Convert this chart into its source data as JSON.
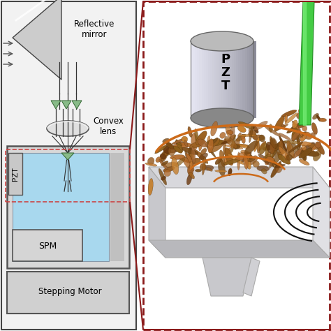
{
  "bg_color": "#ffffff",
  "left_panel_bg": "#f0f0f0",
  "left_border": "#555555",
  "right_border": "#8B1A1A",
  "orange_color": "#CC6B1A",
  "green_color": "#33AA33",
  "light_blue": "#a8d8ee",
  "connector_color": "#8B1A1A",
  "label_fontsize": 8.5,
  "mirror_label": "Reflective\nmirror",
  "lens_label": "Convex\nlens",
  "pzt_label": "PZT",
  "spm_label": "SPM",
  "motor_label": "ping Motor",
  "pzt_right_label": "P\nZ\nT"
}
